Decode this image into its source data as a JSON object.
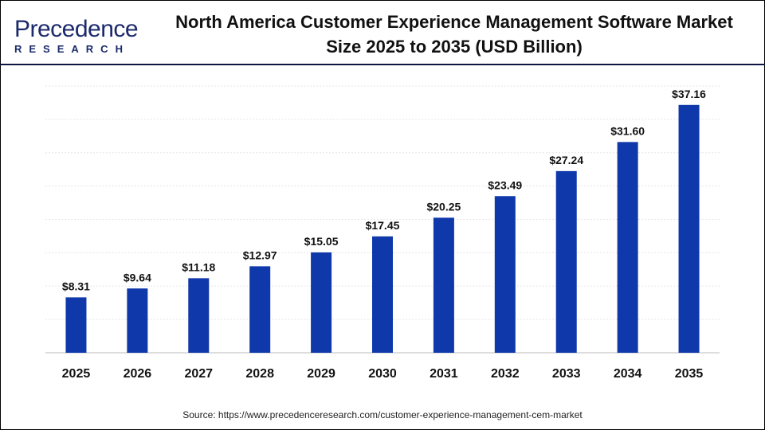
{
  "logo": {
    "line1": "Precedence",
    "line2": "RESEARCH"
  },
  "chart_data": {
    "type": "bar",
    "title": "North America Customer Experience Management Software Market Size 2025 to 2035 (USD Billion)",
    "categories": [
      "2025",
      "2026",
      "2027",
      "2028",
      "2029",
      "2030",
      "2031",
      "2032",
      "2033",
      "2034",
      "2035"
    ],
    "values": [
      8.31,
      9.64,
      11.18,
      12.97,
      15.05,
      17.45,
      20.25,
      23.49,
      27.24,
      31.6,
      37.16
    ],
    "data_labels": [
      "$8.31",
      "$9.64",
      "$11.18",
      "$12.97",
      "$15.05",
      "$17.45",
      "$20.25",
      "$23.49",
      "$27.24",
      "$31.60",
      "$37.16"
    ],
    "xlabel": "",
    "ylabel": "",
    "ylim": [
      0,
      40
    ],
    "grid": true,
    "bar_color": "#0f38aa"
  },
  "source": "Source: https://www.precedenceresearch.com/customer-experience-management-cem-market"
}
